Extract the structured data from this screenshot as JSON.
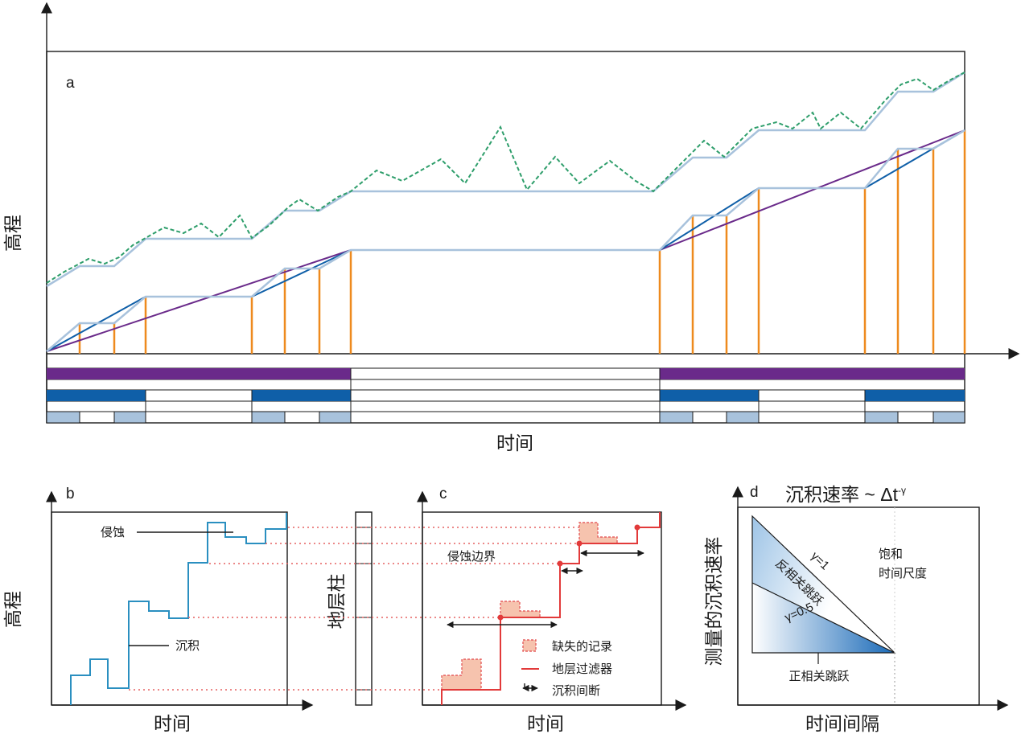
{
  "panel_a": {
    "letter": "a",
    "y_label": "高程",
    "x_label": "时间"
  },
  "panel_b": {
    "letter": "b",
    "y_label": "高程",
    "x_label": "时间",
    "erosion_label": "侵蚀",
    "deposition_label": "沉积"
  },
  "column": {
    "label": "地层柱"
  },
  "panel_c": {
    "letter": "c",
    "x_label": "时间",
    "erosion_boundary_label": "侵蚀边界",
    "legend": {
      "missing": "缺失的记录",
      "filter": "地层过滤器",
      "hiatus": "沉积间断"
    }
  },
  "panel_d": {
    "letter": "d",
    "title": "沉积速率 ~ Δt",
    "title_sup": "-γ",
    "y_label": "测量的沉积速率",
    "x_label": "时间间隔",
    "saturation_line1": "饱和",
    "saturation_line2": "时间尺度",
    "gamma1": "γ=1",
    "gamma05": "γ=0.5",
    "anti_label": "反相关跳跃",
    "pos_label": "正相关跳跃"
  },
  "colors": {
    "green": "#2e9e6b",
    "lightblue": "#a8c2dc",
    "darkblue": "#0f5fa8",
    "purple": "#6a2a8a",
    "orange": "#ee8a1e",
    "red": "#e23a3a",
    "salmon": "#f6c3ae",
    "curve_b": "#2a8fc0"
  }
}
